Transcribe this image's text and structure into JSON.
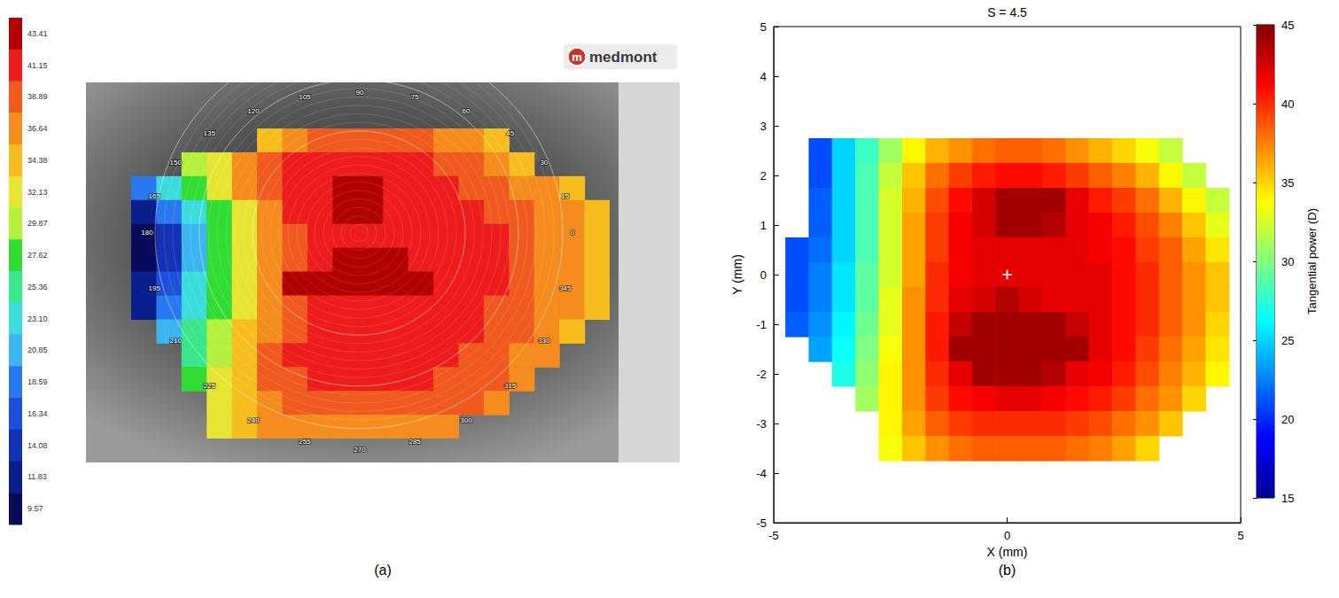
{
  "chart_data": [
    {
      "type": "heatmap",
      "caption": "(a)",
      "annotations": [
        "m",
        "medmont"
      ],
      "meridians": [
        0,
        15,
        30,
        45,
        60,
        75,
        90,
        105,
        120,
        135,
        150,
        165,
        180,
        195,
        210,
        225,
        240,
        255,
        270,
        285,
        300,
        315,
        330,
        345
      ],
      "tick_labels": false,
      "xlim": [
        -4.75,
        4.75
      ],
      "ylim": [
        -3.75,
        2.75
      ],
      "x": [
        -4.5,
        -4,
        -3.5,
        -3,
        -2.5,
        -2,
        -1.5,
        -1,
        -0.5,
        0,
        0.5,
        1,
        1.5,
        2,
        2.5,
        3,
        3.5,
        4,
        4.5
      ],
      "y": [
        2.5,
        2,
        1.5,
        1,
        0.5,
        0,
        -0.5,
        -1,
        -1.5,
        -2,
        -2.5,
        -3,
        -3.5
      ],
      "cells": [
        [
          null,
          null,
          null,
          null,
          null,
          36,
          38,
          39.5,
          40,
          40,
          40,
          39.5,
          38,
          37,
          35,
          null,
          null,
          null,
          null
        ],
        [
          null,
          null,
          30,
          34,
          37,
          39.5,
          41.5,
          42,
          42,
          42,
          42,
          41.5,
          40,
          39.5,
          37,
          35,
          null,
          null,
          null
        ],
        [
          20,
          25,
          29,
          33,
          37,
          40,
          42,
          42,
          43.6,
          43.6,
          42,
          42,
          42,
          41,
          40,
          38.5,
          37,
          35,
          null
        ],
        [
          14,
          20,
          25,
          29,
          33.5,
          38,
          41.5,
          42,
          43.6,
          43.6,
          42,
          42,
          42,
          42,
          41,
          40,
          38.5,
          37,
          35
        ],
        [
          10.5,
          16,
          23,
          28,
          32.5,
          37,
          40.5,
          42,
          42,
          42,
          42,
          42,
          42,
          42,
          41.5,
          40,
          38.5,
          37,
          35
        ],
        [
          10.5,
          16,
          23,
          28,
          32.5,
          37,
          40.5,
          42,
          43.6,
          43.6,
          43.6,
          42,
          42,
          42,
          41.5,
          40,
          38.5,
          37,
          35
        ],
        [
          12,
          17,
          23.5,
          28.5,
          33,
          37.5,
          43.6,
          43.6,
          43.6,
          43.6,
          43.6,
          43.6,
          42,
          42,
          41.5,
          40,
          38.5,
          37,
          35
        ],
        [
          14,
          19,
          25,
          29.5,
          34,
          38,
          41,
          42,
          42,
          42,
          42,
          42,
          42,
          42,
          41,
          40,
          38.5,
          37,
          35
        ],
        [
          null,
          21,
          26,
          30.5,
          35,
          38.5,
          41,
          42,
          42,
          42,
          42,
          42,
          42,
          41.5,
          41,
          39.5,
          38,
          36,
          null
        ],
        [
          null,
          null,
          27,
          31.5,
          35.5,
          39,
          41.5,
          42,
          42,
          42,
          42,
          42,
          41.5,
          41,
          40,
          38.5,
          37,
          null,
          null
        ],
        [
          null,
          null,
          29,
          32.5,
          36,
          39,
          40.5,
          41.5,
          42,
          42,
          42,
          41.5,
          41,
          40,
          39,
          37.5,
          null,
          null,
          null
        ],
        [
          null,
          null,
          null,
          33,
          36,
          38.5,
          39.5,
          40,
          40.5,
          40.5,
          40.5,
          40,
          39.5,
          39,
          37,
          null,
          null,
          null,
          null
        ],
        [
          null,
          null,
          null,
          33,
          35,
          37,
          37.5,
          38,
          38,
          38,
          38,
          37.5,
          37,
          null,
          null,
          null,
          null,
          null,
          null
        ]
      ],
      "color_scale": {
        "ticks": [
          43.41,
          41.15,
          38.89,
          36.64,
          34.38,
          32.13,
          29.87,
          27.62,
          25.36,
          {
            "value": 23.1,
            "label": "23.10"
          },
          20.85,
          18.59,
          16.34,
          14.08,
          11.83,
          9.57
        ],
        "colors": [
          "#b00000",
          "#ee1c1c",
          "#f05a1e",
          "#f58c1e",
          "#f5be1e",
          "#e6e632",
          "#b4f03c",
          "#32dc32",
          "#3ce68c",
          "#3cdcdc",
          "#3cb4f0",
          "#2878f0",
          "#1e50dc",
          "#1432b4",
          "#0a1e8c",
          "#0a0a5a"
        ]
      }
    },
    {
      "type": "heatmap",
      "title": "S = 4.5",
      "caption": "(b)",
      "x_label": "X (mm)",
      "y_label": "Y (mm)",
      "xlim": [
        -5,
        5
      ],
      "xticks": [
        -5,
        0,
        5
      ],
      "ylim": [
        -5,
        5
      ],
      "yticks": [
        -5,
        -4,
        -3,
        -2,
        -1,
        0,
        1,
        2,
        3,
        4,
        5
      ],
      "grid": false,
      "x": [
        -4.5,
        -4,
        -3.5,
        -3,
        -2.5,
        -2,
        -1.5,
        -1,
        -0.5,
        0,
        0.5,
        1,
        1.5,
        2,
        2.5,
        3,
        3.5,
        4,
        4.5
      ],
      "y": [
        2.5,
        2,
        1.5,
        1,
        0.5,
        0,
        -0.5,
        -1,
        -1.5,
        -2,
        -2.5,
        -3,
        -3.5
      ],
      "cells": [
        [
          null,
          21,
          25,
          28,
          31,
          34,
          36,
          37,
          38,
          38.5,
          38.5,
          38,
          37,
          36,
          35,
          33.5,
          32,
          null,
          null
        ],
        [
          null,
          21,
          25,
          28.5,
          32,
          35.5,
          38,
          39.5,
          40.5,
          41,
          41,
          40.5,
          39.5,
          38.5,
          37.5,
          36,
          34,
          32,
          null
        ],
        [
          null,
          21.5,
          25,
          28.5,
          32.5,
          36,
          39,
          41,
          42.5,
          44,
          44,
          44,
          42,
          40.5,
          39.5,
          38,
          36,
          34,
          32
        ],
        [
          null,
          21.5,
          25,
          28.5,
          32.5,
          36.5,
          39.5,
          41.5,
          42.5,
          44,
          44,
          43.5,
          42,
          41.5,
          40.5,
          39,
          37.5,
          35.5,
          33
        ],
        [
          21,
          22,
          25,
          28.5,
          32.5,
          36.5,
          39.5,
          41.5,
          42,
          42,
          42,
          42,
          42,
          41.5,
          41,
          39.5,
          38.5,
          36.5,
          34.5
        ],
        [
          21,
          22.5,
          25.5,
          29,
          32.5,
          36.5,
          40,
          41.5,
          42,
          42,
          42,
          42,
          42,
          42,
          41,
          40,
          38.5,
          37,
          35.5
        ],
        [
          21,
          22.5,
          25.5,
          29,
          33,
          37,
          40,
          42,
          42.5,
          43.5,
          42.5,
          42,
          42,
          42,
          41,
          40,
          38.5,
          37,
          35.5
        ],
        [
          21.5,
          23,
          26,
          29.5,
          33,
          37,
          40.5,
          43,
          44,
          44,
          44,
          44,
          43,
          42,
          41,
          40,
          38.5,
          37,
          35
        ],
        [
          null,
          23.5,
          26.5,
          30,
          33.5,
          37,
          40.5,
          44,
          44,
          44,
          44,
          44,
          44,
          42,
          41,
          39.5,
          38,
          36.5,
          34.5
        ],
        [
          null,
          null,
          27,
          30.5,
          34,
          37,
          40,
          42,
          44,
          44,
          44,
          43.5,
          42,
          41.5,
          40.5,
          39,
          37.5,
          36,
          34
        ],
        [
          null,
          null,
          null,
          31,
          34,
          37,
          39.5,
          41,
          41.5,
          42,
          42,
          41.5,
          41,
          40.5,
          39.5,
          38,
          37,
          35,
          null
        ],
        [
          null,
          null,
          null,
          null,
          34,
          36.5,
          38.5,
          39.5,
          40,
          40,
          40,
          40,
          39.5,
          39,
          38,
          37,
          35.5,
          null,
          null
        ],
        [
          null,
          null,
          null,
          null,
          33.5,
          35.5,
          37,
          38,
          38.5,
          38.5,
          38.5,
          38.5,
          38,
          37.5,
          36.5,
          35,
          null,
          null,
          null
        ]
      ],
      "color_scale": {
        "label": "Tangential power (D)",
        "lim": [
          15,
          45
        ],
        "ticks": [
          15,
          20,
          25,
          30,
          35,
          40,
          45
        ]
      },
      "marker_point": {
        "x": 0,
        "y": 0,
        "marker": "cross",
        "color": "#ffffff"
      }
    }
  ]
}
